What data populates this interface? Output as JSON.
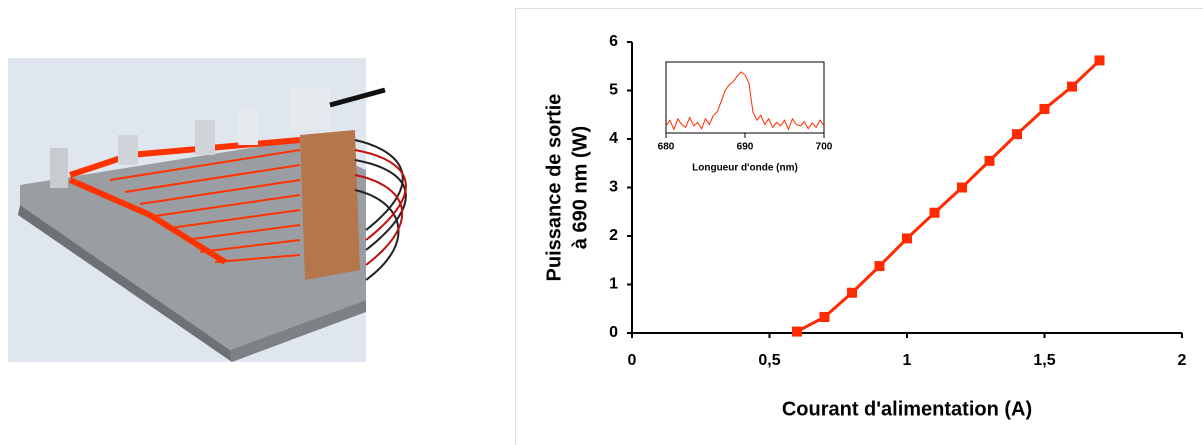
{
  "chart_data": [
    {
      "type": "line",
      "x_label": "Courant d'alimentation (A)",
      "y_label": [
        "Puissance de sortie",
        "à 690 nm (W)"
      ],
      "x": [
        0.6,
        0.7,
        0.8,
        0.9,
        1.0,
        1.1,
        1.2,
        1.3,
        1.4,
        1.5,
        1.6,
        1.7
      ],
      "values": [
        0.03,
        0.33,
        0.83,
        1.38,
        1.95,
        2.48,
        3.0,
        3.55,
        4.1,
        4.62,
        5.08,
        5.62
      ],
      "color": "#ff2a00",
      "markers": true,
      "xlim": [
        0,
        2
      ],
      "xticks": [
        0,
        {
          "value": 0.5,
          "label": "0,5"
        },
        1,
        {
          "value": 1.5,
          "label": "1,5"
        },
        2
      ],
      "ylim": [
        0,
        6
      ],
      "yticks": [
        0,
        1,
        2,
        3,
        4,
        5,
        6
      ]
    },
    {
      "type": "line",
      "x_label": "Longueur d'onde (nm)",
      "x": [
        680,
        680.5,
        681,
        681.5,
        682,
        682.5,
        683,
        683.5,
        684,
        684.5,
        685,
        685.5,
        686,
        686.5,
        687,
        687.5,
        688,
        688.5,
        689,
        689.5,
        690,
        690.5,
        691,
        691.5,
        692,
        692.5,
        693,
        693.5,
        694,
        694.5,
        695,
        695.5,
        696,
        696.5,
        697,
        697.5,
        698,
        698.5,
        699,
        699.5,
        700
      ],
      "values": [
        0.1,
        0.18,
        0.05,
        0.2,
        0.12,
        0.08,
        0.22,
        0.1,
        0.15,
        0.06,
        0.2,
        0.12,
        0.25,
        0.3,
        0.45,
        0.6,
        0.68,
        0.72,
        0.8,
        0.86,
        0.82,
        0.7,
        0.3,
        0.18,
        0.25,
        0.12,
        0.2,
        0.08,
        0.15,
        0.1,
        0.18,
        0.05,
        0.2,
        0.12,
        0.1,
        0.16,
        0.06,
        0.14,
        0.08,
        0.18,
        0.1
      ],
      "color": "#ff2a00",
      "markers": false,
      "xlim": [
        680,
        700
      ],
      "xticks": [
        680,
        690,
        700
      ],
      "ylim": [
        0,
        1
      ]
    }
  ]
}
